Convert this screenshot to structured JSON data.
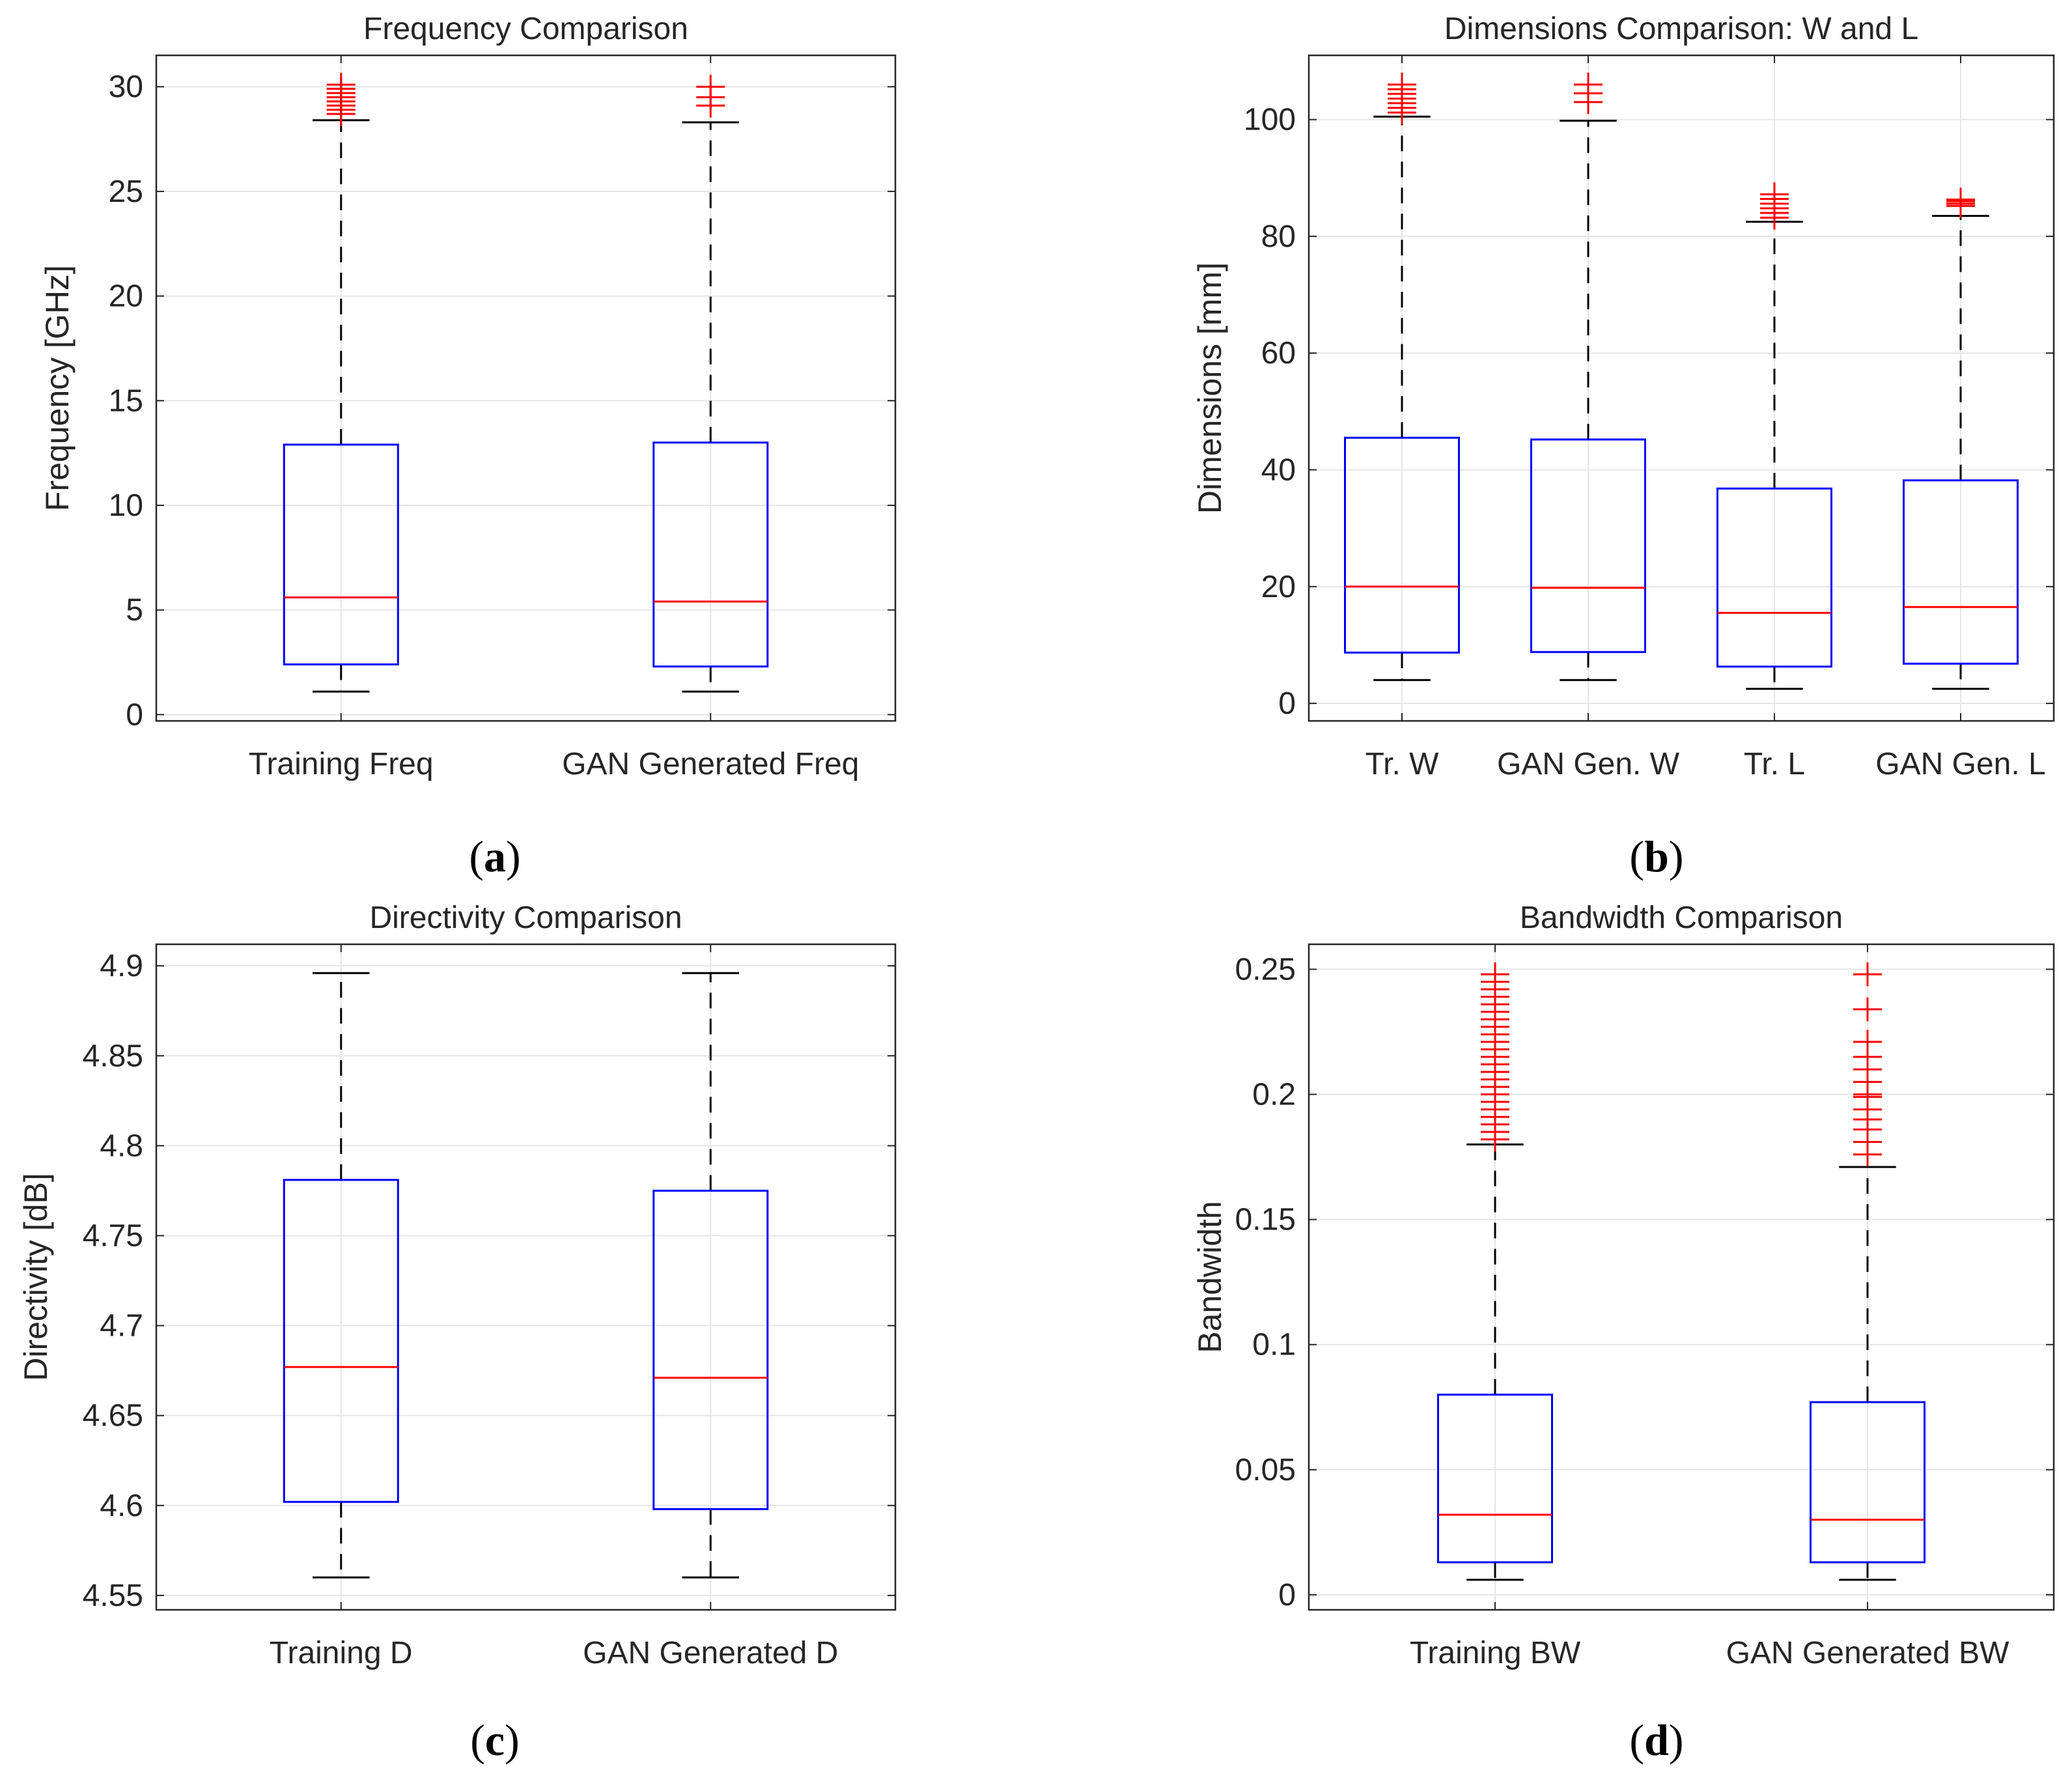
{
  "figure": {
    "name": "GAN vs training data box-plot comparison",
    "colors": {
      "box": "#0000ff",
      "median": "#ff0000",
      "outlier": "#ff0000",
      "whisker": "#000000",
      "grid": "#e6e6e6",
      "axes": "#262626"
    }
  },
  "chart_data": [
    {
      "panel": "a",
      "caption": "a",
      "type": "boxplot",
      "title": "Frequency Comparison",
      "xlabel": "",
      "ylabel": "Frequency [GHz]",
      "ylim": [
        -0.3,
        31.5
      ],
      "yticks": [
        0,
        5,
        10,
        15,
        20,
        25,
        30
      ],
      "ytick_labels": [
        "0",
        "5",
        "10",
        "15",
        "20",
        "25",
        "30"
      ],
      "grid": true,
      "categories": [
        "Training Freq",
        "GAN Generated Freq"
      ],
      "boxes": [
        {
          "whisker_low": 1.1,
          "q1": 2.4,
          "median": 5.6,
          "q3": 12.9,
          "whisker_high": 28.4,
          "outliers": [
            28.7,
            28.9,
            29.1,
            29.3,
            29.5,
            29.7,
            29.9,
            30.1
          ]
        },
        {
          "whisker_low": 1.1,
          "q1": 2.3,
          "median": 5.4,
          "q3": 13.0,
          "whisker_high": 28.3,
          "outliers": [
            29.1,
            29.5,
            30.0
          ]
        }
      ]
    },
    {
      "panel": "b",
      "caption": "b",
      "type": "boxplot",
      "title": "Dimensions Comparison: W and L",
      "xlabel": "",
      "ylabel": "Dimensions [mm]",
      "ylim": [
        -3,
        111
      ],
      "yticks": [
        0,
        20,
        40,
        60,
        80,
        100
      ],
      "ytick_labels": [
        "0",
        "20",
        "40",
        "60",
        "80",
        "100"
      ],
      "grid": true,
      "categories": [
        "Tr. W",
        "GAN Gen. W",
        "Tr. L",
        "GAN Gen. L"
      ],
      "boxes": [
        {
          "whisker_low": 4,
          "q1": 8.7,
          "median": 20,
          "q3": 45.5,
          "whisker_high": 100.5,
          "outliers": [
            101.2,
            102,
            102.8,
            103.6,
            104.4,
            105.2,
            106
          ]
        },
        {
          "whisker_low": 4,
          "q1": 8.8,
          "median": 19.8,
          "q3": 45.2,
          "whisker_high": 99.8,
          "outliers": [
            103,
            104.5,
            106
          ]
        },
        {
          "whisker_low": 2.5,
          "q1": 6.3,
          "median": 15.5,
          "q3": 36.8,
          "whisker_high": 82.5,
          "outliers": [
            83.2,
            84,
            84.8,
            85.6,
            86.4,
            87.2
          ]
        },
        {
          "whisker_low": 2.5,
          "q1": 6.8,
          "median": 16.5,
          "q3": 38.2,
          "whisker_high": 83.5,
          "outliers": [
            85.2,
            85.6,
            86,
            86.3
          ]
        }
      ]
    },
    {
      "panel": "c",
      "caption": "c",
      "type": "boxplot",
      "title": "Directivity Comparison",
      "xlabel": "",
      "ylabel": "Directivity [dB]",
      "ylim": [
        4.542,
        4.912
      ],
      "yticks": [
        4.55,
        4.6,
        4.65,
        4.7,
        4.75,
        4.8,
        4.85,
        4.9
      ],
      "ytick_labels": [
        "4.55",
        "4.6",
        "4.65",
        "4.7",
        "4.75",
        "4.8",
        "4.85",
        "4.9"
      ],
      "grid": true,
      "categories": [
        "Training D",
        "GAN Generated D"
      ],
      "boxes": [
        {
          "whisker_low": 4.56,
          "q1": 4.602,
          "median": 4.677,
          "q3": 4.781,
          "whisker_high": 4.896,
          "outliers": []
        },
        {
          "whisker_low": 4.56,
          "q1": 4.598,
          "median": 4.671,
          "q3": 4.775,
          "whisker_high": 4.896,
          "outliers": []
        }
      ]
    },
    {
      "panel": "d",
      "caption": "d",
      "type": "boxplot",
      "title": "Bandwidth Comparison",
      "xlabel": "",
      "ylabel": "Bandwidth",
      "ylim": [
        -0.006,
        0.26
      ],
      "yticks": [
        0,
        0.05,
        0.1,
        0.15,
        0.2,
        0.25
      ],
      "ytick_labels": [
        "0",
        "0.05",
        "0.1",
        "0.15",
        "0.2",
        "0.25"
      ],
      "grid": true,
      "categories": [
        "Training BW",
        "GAN Generated BW"
      ],
      "boxes": [
        {
          "whisker_low": 0.006,
          "q1": 0.013,
          "median": 0.032,
          "q3": 0.08,
          "whisker_high": 0.18,
          "outliers": [
            0.182,
            0.185,
            0.188,
            0.191,
            0.194,
            0.197,
            0.2,
            0.203,
            0.206,
            0.209,
            0.212,
            0.215,
            0.218,
            0.221,
            0.224,
            0.227,
            0.23,
            0.233,
            0.236,
            0.239,
            0.242,
            0.245,
            0.248
          ]
        },
        {
          "whisker_low": 0.006,
          "q1": 0.013,
          "median": 0.03,
          "q3": 0.077,
          "whisker_high": 0.171,
          "outliers": [
            0.176,
            0.181,
            0.186,
            0.19,
            0.194,
            0.199,
            0.2,
            0.205,
            0.21,
            0.215,
            0.221,
            0.234,
            0.248
          ]
        }
      ]
    }
  ]
}
